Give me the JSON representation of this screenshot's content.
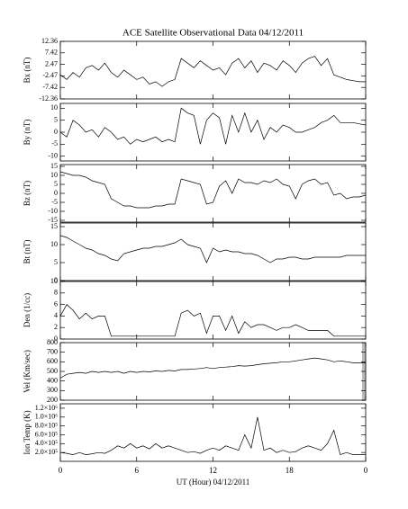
{
  "chart_data": [
    {
      "type": "line",
      "title": "ACE Satellite Observational Data   04/12/2011",
      "ylabel": "Bx (nT)",
      "xlim": [
        0,
        24
      ],
      "ylim": [
        -12.36,
        12.36
      ],
      "yticks": [
        12.36,
        7.42,
        2.47,
        -2.47,
        -7.42,
        -12.36
      ],
      "x": [
        0,
        0.5,
        1,
        1.5,
        2,
        2.5,
        3,
        3.5,
        4,
        4.5,
        5,
        5.5,
        6,
        6.5,
        7,
        7.5,
        8,
        8.5,
        9,
        9.5,
        10,
        10.5,
        11,
        11.5,
        12,
        12.5,
        13,
        13.5,
        14,
        14.5,
        15,
        15.5,
        16,
        16.5,
        17,
        17.5,
        18,
        18.5,
        19,
        19.5,
        20,
        20.5,
        21,
        21.5,
        22,
        22.5,
        23,
        23.5,
        24
      ],
      "values": [
        -2,
        -4,
        -1,
        -3,
        1,
        2,
        0,
        3,
        -1,
        -3,
        0,
        -2,
        -4,
        -3,
        -6,
        -5,
        -7,
        -5,
        -4,
        5,
        3,
        1,
        4,
        2,
        0,
        1,
        -2,
        3,
        5,
        1,
        4,
        -1,
        3,
        2,
        0,
        4,
        2,
        -1,
        3,
        5,
        6,
        2,
        5,
        -2,
        -3,
        -4,
        -4.5,
        -5,
        -5
      ]
    },
    {
      "type": "line",
      "ylabel": "By (nT)",
      "xlim": [
        0,
        24
      ],
      "ylim": [
        -12,
        12
      ],
      "yticks": [
        10,
        5,
        0,
        -5,
        -10
      ],
      "x": [
        0,
        0.5,
        1,
        1.5,
        2,
        2.5,
        3,
        3.5,
        4,
        4.5,
        5,
        5.5,
        6,
        6.5,
        7,
        7.5,
        8,
        8.5,
        9,
        9.5,
        10,
        10.5,
        11,
        11.5,
        12,
        12.5,
        13,
        13.5,
        14,
        14.5,
        15,
        15.5,
        16,
        16.5,
        17,
        17.5,
        18,
        18.5,
        19,
        19.5,
        20,
        20.5,
        21,
        21.5,
        22,
        22.5,
        23,
        23.5,
        24
      ],
      "values": [
        0,
        -2,
        5,
        3,
        0,
        1,
        -2,
        2,
        0,
        -3,
        -2,
        -5,
        -3,
        -4,
        -3,
        -2,
        -4,
        -3,
        -4,
        10,
        8,
        7,
        -5,
        5,
        8,
        6,
        -5,
        7,
        0,
        8,
        0,
        5,
        -3,
        2,
        0,
        3,
        2,
        0,
        0,
        1,
        2,
        4,
        5,
        7,
        4,
        4,
        4,
        3.5,
        3
      ]
    },
    {
      "type": "line",
      "ylabel": "Bz (nT)",
      "xlim": [
        0,
        24
      ],
      "ylim": [
        -16,
        16
      ],
      "yticks": [
        15,
        10,
        5,
        0,
        -5,
        -10,
        -15
      ],
      "x": [
        0,
        0.5,
        1,
        1.5,
        2,
        2.5,
        3,
        3.5,
        4,
        4.5,
        5,
        5.5,
        6,
        6.5,
        7,
        7.5,
        8,
        8.5,
        9,
        9.5,
        10,
        10.5,
        11,
        11.5,
        12,
        12.5,
        13,
        13.5,
        14,
        14.5,
        15,
        15.5,
        16,
        16.5,
        17,
        17.5,
        18,
        18.5,
        19,
        19.5,
        20,
        20.5,
        21,
        21.5,
        22,
        22.5,
        23,
        23.5,
        24
      ],
      "values": [
        12,
        11,
        10,
        10,
        9,
        7,
        6,
        5,
        -3,
        -5,
        -7,
        -7,
        -8,
        -8,
        -8,
        -7,
        -7,
        -6,
        -6,
        8,
        7,
        6,
        5,
        -6,
        -5,
        4,
        7,
        0,
        8,
        6,
        6,
        5,
        7,
        6,
        8,
        5,
        4,
        -3,
        5,
        7,
        8,
        5,
        6,
        -1,
        0,
        -3,
        -2,
        -2,
        -1
      ]
    },
    {
      "type": "line",
      "ylabel": "Bt (nT)",
      "xlim": [
        0,
        24
      ],
      "ylim": [
        0,
        16
      ],
      "yticks": [
        0,
        5,
        10,
        15
      ],
      "x": [
        0,
        0.5,
        1,
        1.5,
        2,
        2.5,
        3,
        3.5,
        4,
        4.5,
        5,
        5.5,
        6,
        6.5,
        7,
        7.5,
        8,
        8.5,
        9,
        9.5,
        10,
        10.5,
        11,
        11.5,
        12,
        12.5,
        13,
        13.5,
        14,
        14.5,
        15,
        15.5,
        16,
        16.5,
        17,
        17.5,
        18,
        18.5,
        19,
        19.5,
        20,
        20.5,
        21,
        21.5,
        22,
        22.5,
        23,
        23.5,
        24
      ],
      "values": [
        12.5,
        12,
        11,
        10,
        9,
        8.5,
        7.5,
        7,
        6,
        5.5,
        7.5,
        8,
        8.5,
        9,
        9,
        9.5,
        9.5,
        10,
        10.5,
        11.5,
        10,
        9.5,
        9,
        5,
        9,
        8,
        8.5,
        8,
        8,
        7.5,
        7.5,
        7,
        6,
        5,
        6,
        6,
        6.5,
        6.5,
        6,
        6,
        6.5,
        6.5,
        6.5,
        6.5,
        6.5,
        7,
        7,
        7,
        7
      ]
    },
    {
      "type": "line",
      "ylabel": "Den (1/cc)",
      "xlim": [
        0,
        24
      ],
      "ylim": [
        0,
        10
      ],
      "yticks": [
        0,
        2,
        4,
        6,
        8,
        10
      ],
      "x": [
        0,
        0.5,
        1,
        1.5,
        2,
        2.5,
        3,
        3.5,
        4,
        4.5,
        5,
        5.5,
        6,
        6.5,
        7,
        7.5,
        8,
        8.5,
        9,
        9.5,
        10,
        10.5,
        11,
        11.5,
        12,
        12.5,
        13,
        13.5,
        14,
        14.5,
        15,
        15.5,
        16,
        16.5,
        17,
        17.5,
        18,
        18.5,
        19,
        19.5,
        20,
        20.5,
        21,
        21.5,
        22,
        22.5,
        23,
        23.5,
        24
      ],
      "values": [
        4,
        6,
        5,
        3.5,
        4.5,
        3.5,
        4,
        4,
        0.5,
        0.5,
        0.5,
        0.5,
        0.5,
        0.5,
        0.5,
        0.5,
        0.5,
        0.5,
        0.5,
        4.5,
        5,
        4,
        4.5,
        1,
        4,
        4,
        1.5,
        4,
        1,
        3,
        2,
        2.5,
        2.5,
        2,
        1.5,
        2,
        2,
        2.5,
        2,
        1.5,
        1.5,
        1.5,
        1.5,
        0.5,
        0.5,
        0.5,
        0.5,
        0.5,
        0.5
      ]
    },
    {
      "type": "line",
      "ylabel": "Vel (Km/sec)",
      "xlim": [
        0,
        24
      ],
      "ylim": [
        200,
        800
      ],
      "yticks": [
        200,
        300,
        400,
        500,
        600,
        700,
        800
      ],
      "x": [
        0,
        0.5,
        1,
        1.5,
        2,
        2.5,
        3,
        3.5,
        4,
        4.5,
        5,
        5.5,
        6,
        6.5,
        7,
        7.5,
        8,
        8.5,
        9,
        9.5,
        10,
        10.5,
        11,
        11.5,
        12,
        12.5,
        13,
        13.5,
        14,
        14.5,
        15,
        15.5,
        16,
        16.5,
        17,
        17.5,
        18,
        18.5,
        19,
        19.5,
        20,
        20.5,
        21,
        21.5,
        22,
        22.5,
        23,
        23.5,
        24
      ],
      "values": [
        430,
        470,
        480,
        490,
        480,
        500,
        490,
        500,
        490,
        500,
        480,
        500,
        490,
        500,
        495,
        505,
        500,
        510,
        505,
        520,
        520,
        525,
        530,
        540,
        530,
        540,
        545,
        550,
        560,
        555,
        560,
        570,
        580,
        585,
        590,
        600,
        600,
        610,
        620,
        630,
        640,
        630,
        620,
        600,
        610,
        600,
        590,
        590,
        590
      ]
    },
    {
      "type": "line",
      "ylabel": "Ion Temp (K)",
      "xlabel": "UT (Hour)   04/12/2011",
      "xlim": [
        0,
        24
      ],
      "xticks": [
        0,
        6,
        12,
        18,
        {
          "value": 24,
          "label": "0"
        }
      ],
      "ylim": [
        0,
        1300000
      ],
      "yticks": [
        {
          "value": 200000,
          "label": "2.0×10⁵"
        },
        {
          "value": 400000,
          "label": "4.0×10⁵"
        },
        {
          "value": 600000,
          "label": "6.0×10⁵"
        },
        {
          "value": 800000,
          "label": "8.0×10⁵"
        },
        {
          "value": 1000000,
          "label": "1.0×10⁶"
        },
        {
          "value": 1200000,
          "label": "1.2×10⁶"
        }
      ],
      "x": [
        0,
        0.5,
        1,
        1.5,
        2,
        2.5,
        3,
        3.5,
        4,
        4.5,
        5,
        5.5,
        6,
        6.5,
        7,
        7.5,
        8,
        8.5,
        9,
        9.5,
        10,
        10.5,
        11,
        11.5,
        12,
        12.5,
        13,
        13.5,
        14,
        14.5,
        15,
        15.5,
        16,
        16.5,
        17,
        17.5,
        18,
        18.5,
        19,
        19.5,
        20,
        20.5,
        21,
        21.5,
        22,
        22.5,
        23,
        23.5,
        24
      ],
      "values": [
        200000,
        180000,
        150000,
        200000,
        150000,
        170000,
        200000,
        180000,
        250000,
        350000,
        300000,
        400000,
        300000,
        350000,
        280000,
        400000,
        300000,
        350000,
        300000,
        250000,
        200000,
        220000,
        180000,
        250000,
        300000,
        250000,
        350000,
        300000,
        250000,
        600000,
        300000,
        1000000,
        250000,
        300000,
        200000,
        250000,
        200000,
        220000,
        300000,
        350000,
        300000,
        250000,
        400000,
        700000,
        150000,
        200000,
        150000,
        150000,
        150000
      ]
    }
  ]
}
